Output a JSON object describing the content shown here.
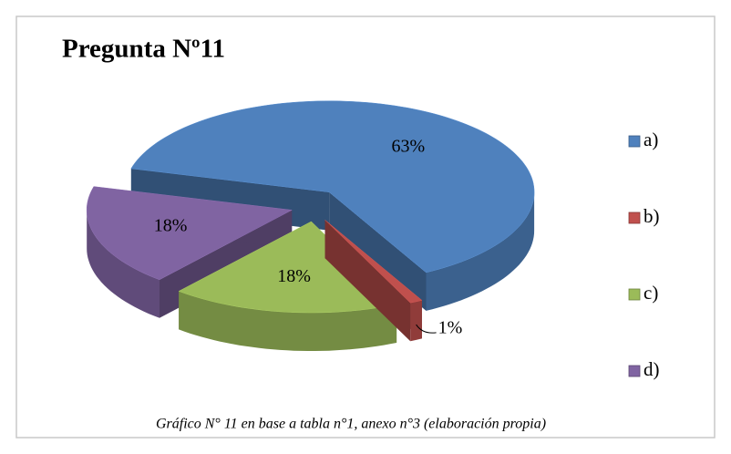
{
  "chart_data": {
    "type": "pie",
    "title": "Pregunta Nº11",
    "categories": [
      "a)",
      "b)",
      "c)",
      "d)"
    ],
    "values": [
      63,
      1,
      18,
      18
    ],
    "value_labels": [
      "63%",
      "1%",
      "18%",
      "18%"
    ],
    "colors": [
      "#4f81bd",
      "#c0504d",
      "#9bbb59",
      "#8064a2"
    ],
    "legend": "right",
    "caption": "Gráfico N° 11 en base a tabla n°1, anexo n°3 (elaboración propia)"
  }
}
